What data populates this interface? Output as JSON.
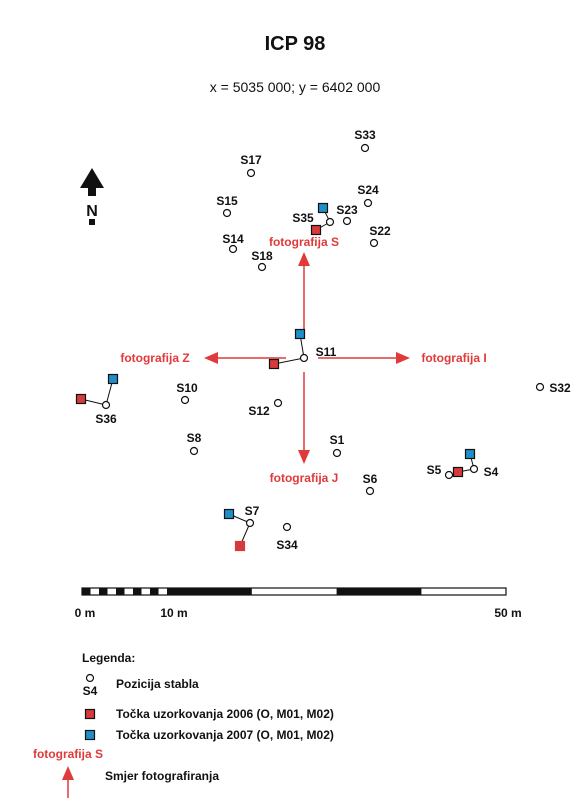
{
  "header": {
    "title": "ICP 98",
    "coords": "x = 5035 000; y = 6402 000"
  },
  "north": {
    "label": "N",
    "icon": "north-arrow-icon"
  },
  "colors": {
    "accent_red": "#e03a3a",
    "sample_2006": "#d63a3a",
    "sample_2007": "#1e8fc8",
    "outline": "#111111"
  },
  "trees": [
    {
      "id": "S33",
      "label": "S33"
    },
    {
      "id": "S17",
      "label": "S17"
    },
    {
      "id": "S24",
      "label": "S24"
    },
    {
      "id": "S15",
      "label": "S15"
    },
    {
      "id": "S23",
      "label": "S23"
    },
    {
      "id": "S35",
      "label": "S35"
    },
    {
      "id": "S22",
      "label": "S22"
    },
    {
      "id": "S14",
      "label": "S14"
    },
    {
      "id": "S18",
      "label": "S18"
    },
    {
      "id": "S11",
      "label": "S11"
    },
    {
      "id": "S10",
      "label": "S10"
    },
    {
      "id": "S12",
      "label": "S12"
    },
    {
      "id": "S36",
      "label": "S36"
    },
    {
      "id": "S32",
      "label": "S32"
    },
    {
      "id": "S8",
      "label": "S8"
    },
    {
      "id": "S1",
      "label": "S1"
    },
    {
      "id": "S5",
      "label": "S5"
    },
    {
      "id": "S4",
      "label": "S4"
    },
    {
      "id": "S6",
      "label": "S6"
    },
    {
      "id": "S7",
      "label": "S7"
    },
    {
      "id": "S34",
      "label": "S34"
    }
  ],
  "photo_directions": {
    "S": "fotografija S",
    "Z": "fotografija Z",
    "I": "fotografija I",
    "J": "fotografija J"
  },
  "scale": {
    "labels": [
      "0 m",
      "10 m",
      "50 m"
    ]
  },
  "legend": {
    "title": "Legenda:",
    "items": [
      {
        "symbol": "tree-symbol",
        "sample_label": "S4",
        "text": "Pozicija stabla"
      },
      {
        "symbol": "square-2006",
        "text": "Točka uzorkovanja 2006 (O, M01, M02)"
      },
      {
        "symbol": "square-2007",
        "text": "Točka uzorkovanja 2007 (O, M01, M02)"
      },
      {
        "symbol": "photo-arrow",
        "sample_label": "fotografija S",
        "text": "Smjer fotografiranja"
      }
    ]
  }
}
